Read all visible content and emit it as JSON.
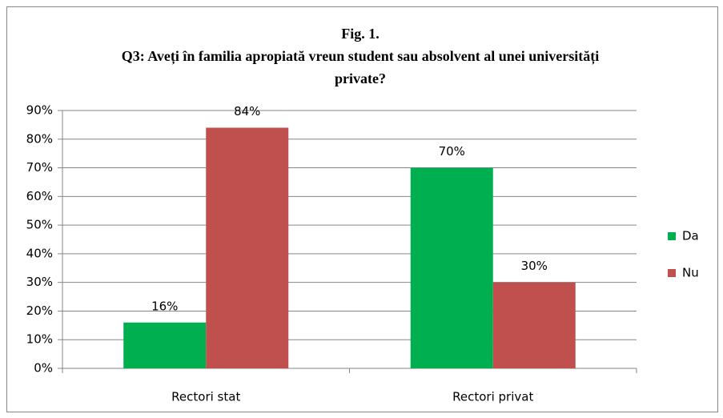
{
  "chart_data": {
    "type": "bar",
    "title": "Fig. 1.",
    "subtitle": "Q3: Aveți în familia apropiată vreun student sau absolvent al unei universități private?",
    "categories": [
      "Rectori stat",
      "Rectori privat"
    ],
    "series": [
      {
        "name": "Da",
        "color": "#00b050",
        "values": [
          16,
          70
        ],
        "value_labels": [
          "16%",
          "70%"
        ]
      },
      {
        "name": "Nu",
        "color": "#c0504d",
        "values": [
          84,
          30
        ],
        "value_labels": [
          "84%",
          "30%"
        ]
      }
    ],
    "ylim": [
      0,
      90
    ],
    "yticks": [
      {
        "value": 0,
        "label": "0%"
      },
      {
        "value": 10,
        "label": "10%"
      },
      {
        "value": 20,
        "label": "20%"
      },
      {
        "value": 30,
        "label": "30%"
      },
      {
        "value": 40,
        "label": "40%"
      },
      {
        "value": 50,
        "label": "50%"
      },
      {
        "value": 60,
        "label": "60%"
      },
      {
        "value": 70,
        "label": "70%"
      },
      {
        "value": 80,
        "label": "80%"
      },
      {
        "value": 90,
        "label": "90%"
      }
    ],
    "grid": true,
    "legend": "right"
  }
}
